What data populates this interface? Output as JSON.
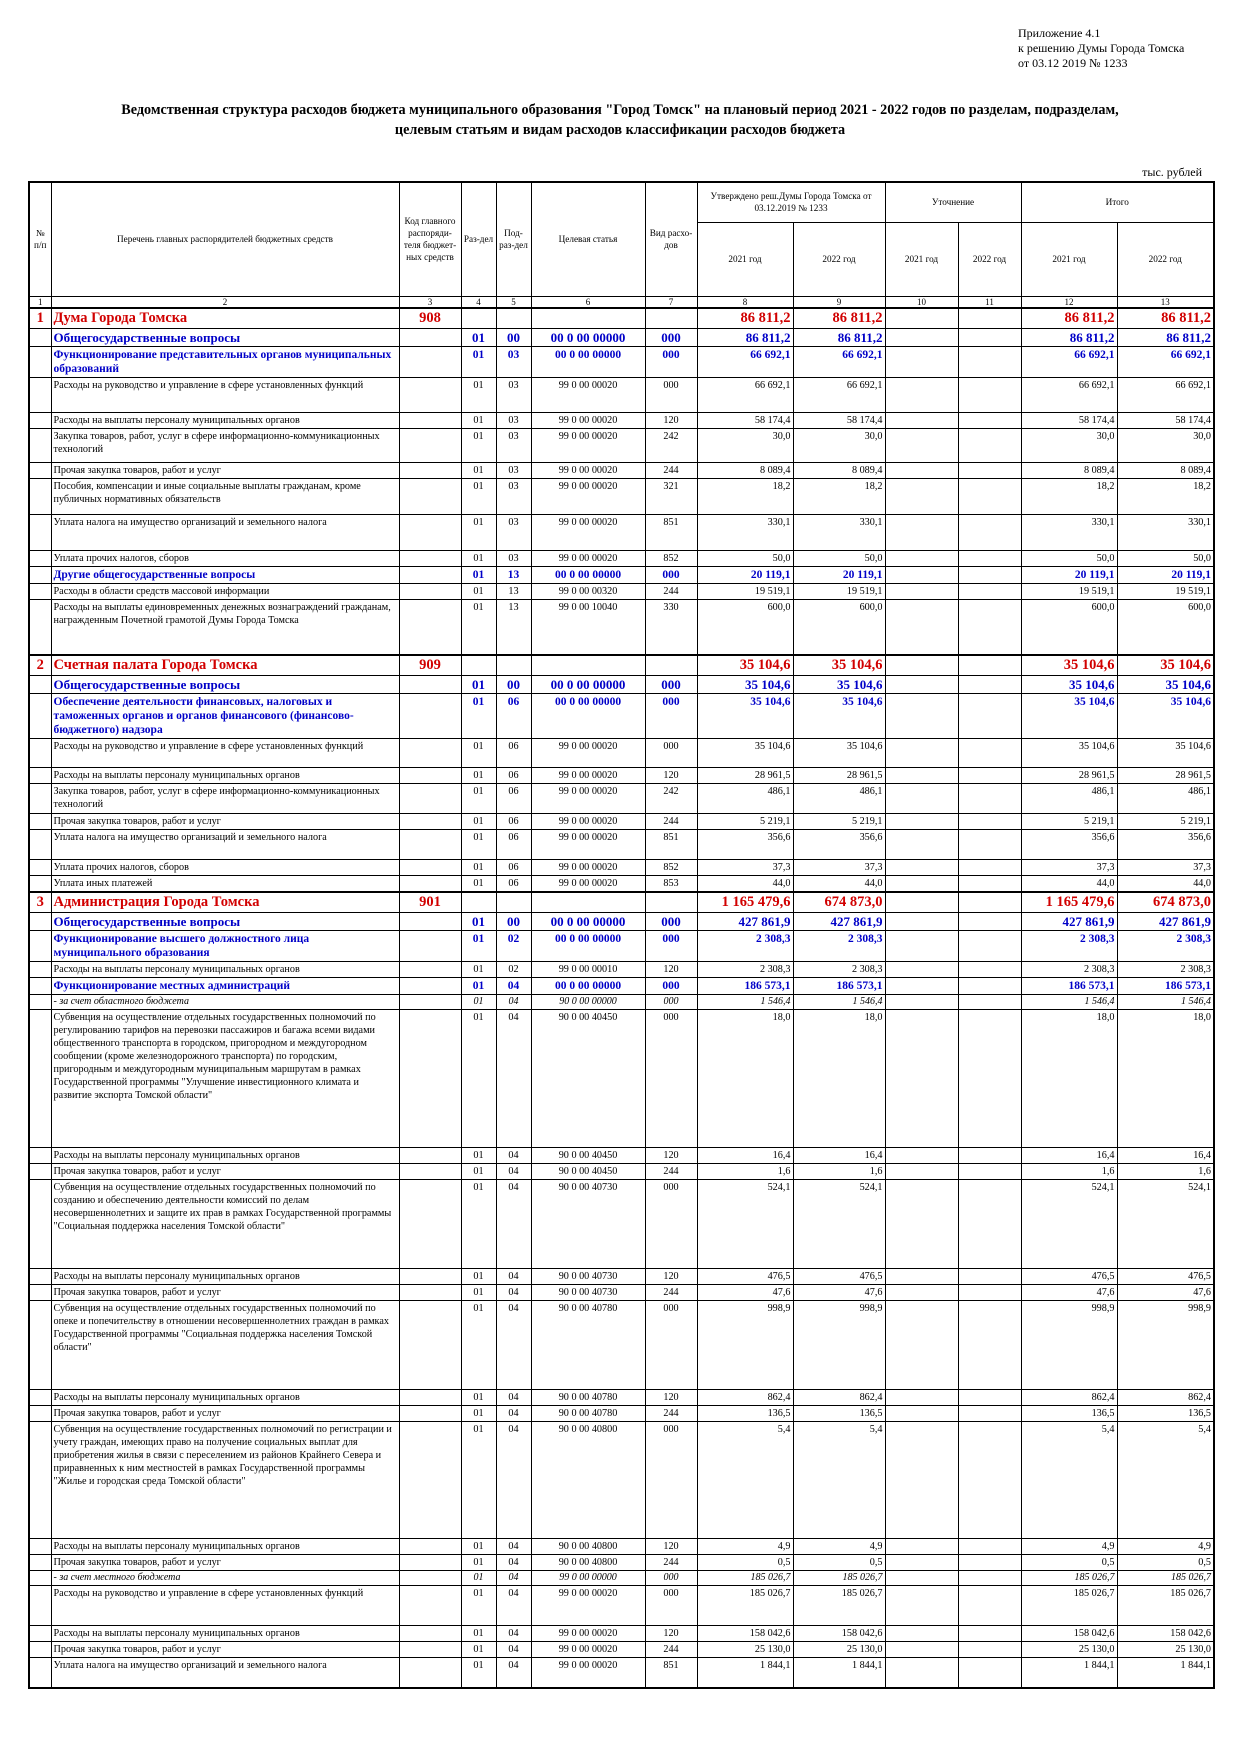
{
  "appendix": {
    "line1": "Приложение 4.1",
    "line2": "к решению Думы Города Томска",
    "line3": "от 03.12 2019 № 1233"
  },
  "title": {
    "line1": "Ведомственная структура расходов бюджета муниципального образования \"Город Томск\" на плановый период 2021 - 2022 годов по разделам, подразделам,",
    "line2": "целевым статьям и видам расходов классификации расходов бюджета"
  },
  "units": "тыс. рублей",
  "header": {
    "num": "№ п/п",
    "name": "Перечень главных распорядителей бюджетных средств",
    "code": "Код главного распоряди-теля бюджет-ных средств",
    "razdel": "Раз-дел",
    "podrazdel": "Под-раз-дел",
    "cs": "Целевая статья",
    "vr": "Вид расхо-дов",
    "approved": "Утверждено реш.Думы Города Томска от 03.12.2019 № 1233",
    "clarification": "Уточнение",
    "total": "Итого",
    "y2021": "2021 год",
    "y2022": "2022 год",
    "idx": [
      "1",
      "2",
      "3",
      "4",
      "5",
      "6",
      "7",
      "8",
      "9",
      "10",
      "11",
      "12",
      "13"
    ]
  },
  "rows": [
    {
      "lvl": "l1",
      "h": 18,
      "n": "1",
      "name": "Дума Города Томска",
      "code": "908",
      "r": "",
      "p": "",
      "cs": "",
      "vr": "",
      "a21": "86 811,2",
      "a22": "86 811,2",
      "u21": "",
      "u22": "",
      "t21": "86 811,2",
      "t22": "86 811,2"
    },
    {
      "lvl": "l2",
      "h": 16,
      "n": "",
      "name": "Общегосударственные вопросы",
      "code": "",
      "r": "01",
      "p": "00",
      "cs": "00 0 00 00000",
      "vr": "000",
      "a21": "86 811,2",
      "a22": "86 811,2",
      "u21": "",
      "u22": "",
      "t21": "86 811,2",
      "t22": "86 811,2"
    },
    {
      "lvl": "l3",
      "h": 29,
      "n": "",
      "name": "Функционирование представительных органов муниципальных образований",
      "code": "",
      "r": "01",
      "p": "03",
      "cs": "00 0 00 00000",
      "vr": "000",
      "a21": "66 692,1",
      "a22": "66 692,1",
      "u21": "",
      "u22": "",
      "t21": "66 692,1",
      "t22": "66 692,1"
    },
    {
      "lvl": "",
      "h": 35,
      "n": "",
      "name": "Расходы на руководство и управление в сфере установленных функций",
      "code": "",
      "r": "01",
      "p": "03",
      "cs": "99 0 00 00020",
      "vr": "000",
      "a21": "66 692,1",
      "a22": "66 692,1",
      "u21": "",
      "u22": "",
      "t21": "66 692,1",
      "t22": "66 692,1"
    },
    {
      "lvl": "",
      "h": 16,
      "n": "",
      "name": "Расходы на выплаты персоналу муниципальных органов",
      "code": "",
      "r": "01",
      "p": "03",
      "cs": "99 0 00 00020",
      "vr": "120",
      "a21": "58 174,4",
      "a22": "58 174,4",
      "u21": "",
      "u22": "",
      "t21": "58 174,4",
      "t22": "58 174,4"
    },
    {
      "lvl": "",
      "h": 34,
      "n": "",
      "name": "Закупка товаров, работ, услуг в сфере информационно-коммуникационных технологий",
      "code": "",
      "r": "01",
      "p": "03",
      "cs": "99 0 00 00020",
      "vr": "242",
      "a21": "30,0",
      "a22": "30,0",
      "u21": "",
      "u22": "",
      "t21": "30,0",
      "t22": "30,0"
    },
    {
      "lvl": "",
      "h": 15,
      "n": "",
      "name": "Прочая закупка товаров, работ и услуг",
      "code": "",
      "r": "01",
      "p": "03",
      "cs": "99 0 00 00020",
      "vr": "244",
      "a21": "8 089,4",
      "a22": "8 089,4",
      "u21": "",
      "u22": "",
      "t21": "8 089,4",
      "t22": "8 089,4"
    },
    {
      "lvl": "",
      "h": 36,
      "n": "",
      "name": "Пособия, компенсации и иные социальные выплаты гражданам, кроме публичных нормативных обязательств",
      "code": "",
      "r": "01",
      "p": "03",
      "cs": "99 0 00 00020",
      "vr": "321",
      "a21": "18,2",
      "a22": "18,2",
      "u21": "",
      "u22": "",
      "t21": "18,2",
      "t22": "18,2"
    },
    {
      "lvl": "",
      "h": 36,
      "n": "",
      "name": "Уплата налога на имущество организаций и земельного налога",
      "code": "",
      "r": "01",
      "p": "03",
      "cs": "99 0 00 00020",
      "vr": "851",
      "a21": "330,1",
      "a22": "330,1",
      "u21": "",
      "u22": "",
      "t21": "330,1",
      "t22": "330,1"
    },
    {
      "lvl": "",
      "h": 15,
      "n": "",
      "name": "Уплата прочих налогов, сборов",
      "code": "",
      "r": "01",
      "p": "03",
      "cs": "99 0 00 00020",
      "vr": "852",
      "a21": "50,0",
      "a22": "50,0",
      "u21": "",
      "u22": "",
      "t21": "50,0",
      "t22": "50,0"
    },
    {
      "lvl": "l3",
      "h": 16,
      "n": "",
      "name": "Другие общегосударственные вопросы",
      "code": "",
      "r": "01",
      "p": "13",
      "cs": "00 0 00 00000",
      "vr": "000",
      "a21": "20 119,1",
      "a22": "20 119,1",
      "u21": "",
      "u22": "",
      "t21": "20 119,1",
      "t22": "20 119,1"
    },
    {
      "lvl": "",
      "h": 15,
      "n": "",
      "name": "Расходы в области средств массовой информации",
      "code": "",
      "r": "01",
      "p": "13",
      "cs": "99 0 00 00320",
      "vr": "244",
      "a21": "19 519,1",
      "a22": "19 519,1",
      "u21": "",
      "u22": "",
      "t21": "19 519,1",
      "t22": "19 519,1"
    },
    {
      "lvl": "",
      "h": 56,
      "n": "",
      "name": "Расходы на выплаты единовременных денежных вознаграждений гражданам, награжденным Почетной грамотой Думы Города Томска",
      "code": "",
      "r": "01",
      "p": "13",
      "cs": "99 0 00 10040",
      "vr": "330",
      "a21": "600,0",
      "a22": "600,0",
      "u21": "",
      "u22": "",
      "t21": "600,0",
      "t22": "600,0"
    },
    {
      "lvl": "l1",
      "h": 18,
      "n": "2",
      "name": "Счетная палата Города Томска",
      "code": "909",
      "r": "",
      "p": "",
      "cs": "",
      "vr": "",
      "a21": "35 104,6",
      "a22": "35 104,6",
      "u21": "",
      "u22": "",
      "t21": "35 104,6",
      "t22": "35 104,6"
    },
    {
      "lvl": "l2",
      "h": 16,
      "n": "",
      "name": "Общегосударственные вопросы",
      "code": "",
      "r": "01",
      "p": "00",
      "cs": "00 0 00 00000",
      "vr": "000",
      "a21": "35 104,6",
      "a22": "35 104,6",
      "u21": "",
      "u22": "",
      "t21": "35 104,6",
      "t22": "35 104,6"
    },
    {
      "lvl": "l3",
      "h": 42,
      "n": "",
      "name": "Обеспечение деятельности финансовых, налоговых и таможенных органов и органов финансового (финансово-бюджетного) надзора",
      "code": "",
      "r": "01",
      "p": "06",
      "cs": "00 0 00 00000",
      "vr": "000",
      "a21": "35 104,6",
      "a22": "35 104,6",
      "u21": "",
      "u22": "",
      "t21": "35 104,6",
      "t22": "35 104,6"
    },
    {
      "lvl": "",
      "h": 29,
      "n": "",
      "name": "Расходы на руководство и управление в сфере установленных функций",
      "code": "",
      "r": "01",
      "p": "06",
      "cs": "99 0 00 00020",
      "vr": "000",
      "a21": "35 104,6",
      "a22": "35 104,6",
      "u21": "",
      "u22": "",
      "t21": "35 104,6",
      "t22": "35 104,6"
    },
    {
      "lvl": "",
      "h": 14,
      "n": "",
      "name": "Расходы на выплаты персоналу муниципальных органов",
      "code": "",
      "r": "01",
      "p": "06",
      "cs": "99 0 00 00020",
      "vr": "120",
      "a21": "28 961,5",
      "a22": "28 961,5",
      "u21": "",
      "u22": "",
      "t21": "28 961,5",
      "t22": "28 961,5"
    },
    {
      "lvl": "",
      "h": 30,
      "n": "",
      "name": "Закупка товаров, работ, услуг в сфере информационно-коммуникационных технологий",
      "code": "",
      "r": "01",
      "p": "06",
      "cs": "99 0 00 00020",
      "vr": "242",
      "a21": "486,1",
      "a22": "486,1",
      "u21": "",
      "u22": "",
      "t21": "486,1",
      "t22": "486,1"
    },
    {
      "lvl": "",
      "h": 15,
      "n": "",
      "name": "Прочая закупка товаров, работ и услуг",
      "code": "",
      "r": "01",
      "p": "06",
      "cs": "99 0 00 00020",
      "vr": "244",
      "a21": "5 219,1",
      "a22": "5 219,1",
      "u21": "",
      "u22": "",
      "t21": "5 219,1",
      "t22": "5 219,1"
    },
    {
      "lvl": "",
      "h": 30,
      "n": "",
      "name": "Уплата налога на имущество организаций и земельного налога",
      "code": "",
      "r": "01",
      "p": "06",
      "cs": "99 0 00 00020",
      "vr": "851",
      "a21": "356,6",
      "a22": "356,6",
      "u21": "",
      "u22": "",
      "t21": "356,6",
      "t22": "356,6"
    },
    {
      "lvl": "",
      "h": 15,
      "n": "",
      "name": "Уплата прочих налогов, сборов",
      "code": "",
      "r": "01",
      "p": "06",
      "cs": "99 0 00 00020",
      "vr": "852",
      "a21": "37,3",
      "a22": "37,3",
      "u21": "",
      "u22": "",
      "t21": "37,3",
      "t22": "37,3"
    },
    {
      "lvl": "",
      "h": 15,
      "n": "",
      "name": "Уплата иных платежей",
      "code": "",
      "r": "01",
      "p": "06",
      "cs": "99 0 00 00020",
      "vr": "853",
      "a21": "44,0",
      "a22": "44,0",
      "u21": "",
      "u22": "",
      "t21": "44,0",
      "t22": "44,0"
    },
    {
      "lvl": "l1",
      "h": 18,
      "n": "3",
      "name": "Администрация Города Томска",
      "code": "901",
      "r": "",
      "p": "",
      "cs": "",
      "vr": "",
      "a21": "1 165 479,6",
      "a22": "674 873,0",
      "u21": "",
      "u22": "",
      "t21": "1 165 479,6",
      "t22": "674 873,0"
    },
    {
      "lvl": "l2",
      "h": 16,
      "n": "",
      "name": "Общегосударственные вопросы",
      "code": "",
      "r": "01",
      "p": "00",
      "cs": "00 0 00 00000",
      "vr": "000",
      "a21": "427 861,9",
      "a22": "427 861,9",
      "u21": "",
      "u22": "",
      "t21": "427 861,9",
      "t22": "427 861,9"
    },
    {
      "lvl": "l3",
      "h": 30,
      "n": "",
      "name": "Функционирование высшего должностного лица муниципального образования",
      "code": "",
      "r": "01",
      "p": "02",
      "cs": "00 0 00 00000",
      "vr": "000",
      "a21": "2 308,3",
      "a22": "2 308,3",
      "u21": "",
      "u22": "",
      "t21": "2 308,3",
      "t22": "2 308,3"
    },
    {
      "lvl": "",
      "h": 15,
      "n": "",
      "name": "Расходы на выплаты персоналу муниципальных органов",
      "code": "",
      "r": "01",
      "p": "02",
      "cs": "99 0 00 00010",
      "vr": "120",
      "a21": "2 308,3",
      "a22": "2 308,3",
      "u21": "",
      "u22": "",
      "t21": "2 308,3",
      "t22": "2 308,3"
    },
    {
      "lvl": "l3",
      "h": 15,
      "n": "",
      "name": "Функционирование местных администраций",
      "code": "",
      "r": "01",
      "p": "04",
      "cs": "00 0 00 00000",
      "vr": "000",
      "a21": "186 573,1",
      "a22": "186 573,1",
      "u21": "",
      "u22": "",
      "t21": "186 573,1",
      "t22": "186 573,1"
    },
    {
      "lvl": "l4",
      "h": 14,
      "n": "",
      "name": "- за счет областного бюджета",
      "code": "",
      "r": "01",
      "p": "04",
      "cs": "90 0 00 00000",
      "vr": "000",
      "a21": "1 546,4",
      "a22": "1 546,4",
      "u21": "",
      "u22": "",
      "t21": "1 546,4",
      "t22": "1 546,4"
    },
    {
      "lvl": "",
      "h": 138,
      "n": "",
      "name": "Субвенция на осуществление отдельных государственных полномочий по регулированию тарифов на перевозки пассажиров и багажа всеми видами общественного транспорта в городском, пригородном и междугородном сообщении (кроме железнодорожного транспорта) по городским, пригородным и междугородным муниципальным маршрутам в рамках Государственной программы \"Улучшение инвестиционного климата и развитие экспорта Томской области\"",
      "code": "",
      "r": "01",
      "p": "04",
      "cs": "90 0 00 40450",
      "vr": "000",
      "a21": "18,0",
      "a22": "18,0",
      "u21": "",
      "u22": "",
      "t21": "18,0",
      "t22": "18,0"
    },
    {
      "lvl": "",
      "h": 15,
      "n": "",
      "name": "Расходы на выплаты персоналу муниципальных органов",
      "code": "",
      "r": "01",
      "p": "04",
      "cs": "90 0 00 40450",
      "vr": "120",
      "a21": "16,4",
      "a22": "16,4",
      "u21": "",
      "u22": "",
      "t21": "16,4",
      "t22": "16,4"
    },
    {
      "lvl": "",
      "h": 14,
      "n": "",
      "name": "Прочая закупка товаров, работ и услуг",
      "code": "",
      "r": "01",
      "p": "04",
      "cs": "90 0 00 40450",
      "vr": "244",
      "a21": "1,6",
      "a22": "1,6",
      "u21": "",
      "u22": "",
      "t21": "1,6",
      "t22": "1,6"
    },
    {
      "lvl": "",
      "h": 89,
      "n": "",
      "name": "Субвенция на осуществление отдельных государственных полномочий по созданию и обеспечению деятельности комиссий по делам несовершеннолетних и защите их прав в рамках Государственной программы \"Социальная поддержка населения Томской области\"",
      "code": "",
      "r": "01",
      "p": "04",
      "cs": "90 0 00 40730",
      "vr": "000",
      "a21": "524,1",
      "a22": "524,1",
      "u21": "",
      "u22": "",
      "t21": "524,1",
      "t22": "524,1"
    },
    {
      "lvl": "",
      "h": 15,
      "n": "",
      "name": "Расходы на выплаты персоналу муниципальных органов",
      "code": "",
      "r": "01",
      "p": "04",
      "cs": "90 0 00 40730",
      "vr": "120",
      "a21": "476,5",
      "a22": "476,5",
      "u21": "",
      "u22": "",
      "t21": "476,5",
      "t22": "476,5"
    },
    {
      "lvl": "",
      "h": 14,
      "n": "",
      "name": "Прочая закупка товаров, работ и услуг",
      "code": "",
      "r": "01",
      "p": "04",
      "cs": "90 0 00 40730",
      "vr": "244",
      "a21": "47,6",
      "a22": "47,6",
      "u21": "",
      "u22": "",
      "t21": "47,6",
      "t22": "47,6"
    },
    {
      "lvl": "",
      "h": 89,
      "n": "",
      "name": "Субвенция на осуществление отдельных государственных полномочий по опеке и попечительству в отношении несовершеннолетних граждан в рамках Государственной программы \"Социальная поддержка населения Томской области\"",
      "code": "",
      "r": "01",
      "p": "04",
      "cs": "90 0 00 40780",
      "vr": "000",
      "a21": "998,9",
      "a22": "998,9",
      "u21": "",
      "u22": "",
      "t21": "998,9",
      "t22": "998,9"
    },
    {
      "lvl": "",
      "h": 15,
      "n": "",
      "name": "Расходы на выплаты персоналу муниципальных органов",
      "code": "",
      "r": "01",
      "p": "04",
      "cs": "90 0 00 40780",
      "vr": "120",
      "a21": "862,4",
      "a22": "862,4",
      "u21": "",
      "u22": "",
      "t21": "862,4",
      "t22": "862,4"
    },
    {
      "lvl": "",
      "h": 15,
      "n": "",
      "name": "Прочая закупка товаров, работ и услуг",
      "code": "",
      "r": "01",
      "p": "04",
      "cs": "90 0 00 40780",
      "vr": "244",
      "a21": "136,5",
      "a22": "136,5",
      "u21": "",
      "u22": "",
      "t21": "136,5",
      "t22": "136,5"
    },
    {
      "lvl": "",
      "h": 117,
      "n": "",
      "name": "Субвенция на осуществление государственных полномочий по регистрации и учету граждан, имеющих право на получение социальных выплат для приобретения жилья в связи с переселением из районов Крайнего Севера и приравненных к ним местностей в рамках Государственной программы \"Жилье и городская среда Томской области\"",
      "code": "",
      "r": "01",
      "p": "04",
      "cs": "90 0 00 40800",
      "vr": "000",
      "a21": "5,4",
      "a22": "5,4",
      "u21": "",
      "u22": "",
      "t21": "5,4",
      "t22": "5,4"
    },
    {
      "lvl": "",
      "h": 15,
      "n": "",
      "name": "Расходы на выплаты персоналу муниципальных органов",
      "code": "",
      "r": "01",
      "p": "04",
      "cs": "90 0 00 40800",
      "vr": "120",
      "a21": "4,9",
      "a22": "4,9",
      "u21": "",
      "u22": "",
      "t21": "4,9",
      "t22": "4,9"
    },
    {
      "lvl": "",
      "h": 14,
      "n": "",
      "name": "Прочая закупка товаров, работ и услуг",
      "code": "",
      "r": "01",
      "p": "04",
      "cs": "90 0 00 40800",
      "vr": "244",
      "a21": "0,5",
      "a22": "0,5",
      "u21": "",
      "u22": "",
      "t21": "0,5",
      "t22": "0,5"
    },
    {
      "lvl": "l4",
      "h": 14,
      "n": "",
      "name": "- за счет местного бюджета",
      "code": "",
      "r": "01",
      "p": "04",
      "cs": "99 0 00 00000",
      "vr": "000",
      "a21": "185 026,7",
      "a22": "185 026,7",
      "u21": "",
      "u22": "",
      "t21": "185 026,7",
      "t22": "185 026,7"
    },
    {
      "lvl": "",
      "h": 40,
      "n": "",
      "name": "Расходы на руководство и управление в сфере установленных функций",
      "code": "",
      "r": "01",
      "p": "04",
      "cs": "99 0 00 00020",
      "vr": "000",
      "a21": "185 026,7",
      "a22": "185 026,7",
      "u21": "",
      "u22": "",
      "t21": "185 026,7",
      "t22": "185 026,7"
    },
    {
      "lvl": "",
      "h": 15,
      "n": "",
      "name": "Расходы на выплаты персоналу муниципальных органов",
      "code": "",
      "r": "01",
      "p": "04",
      "cs": "99 0 00 00020",
      "vr": "120",
      "a21": "158 042,6",
      "a22": "158 042,6",
      "u21": "",
      "u22": "",
      "t21": "158 042,6",
      "t22": "158 042,6"
    },
    {
      "lvl": "",
      "h": 15,
      "n": "",
      "name": "Прочая закупка товаров, работ и услуг",
      "code": "",
      "r": "01",
      "p": "04",
      "cs": "99 0 00 00020",
      "vr": "244",
      "a21": "25 130,0",
      "a22": "25 130,0",
      "u21": "",
      "u22": "",
      "t21": "25 130,0",
      "t22": "25 130,0"
    },
    {
      "lvl": "",
      "h": 30,
      "n": "",
      "name": "Уплата налога на имущество организаций и земельного налога",
      "code": "",
      "r": "01",
      "p": "04",
      "cs": "99 0 00 00020",
      "vr": "851",
      "a21": "1 844,1",
      "a22": "1 844,1",
      "u21": "",
      "u22": "",
      "t21": "1 844,1",
      "t22": "1 844,1"
    }
  ]
}
